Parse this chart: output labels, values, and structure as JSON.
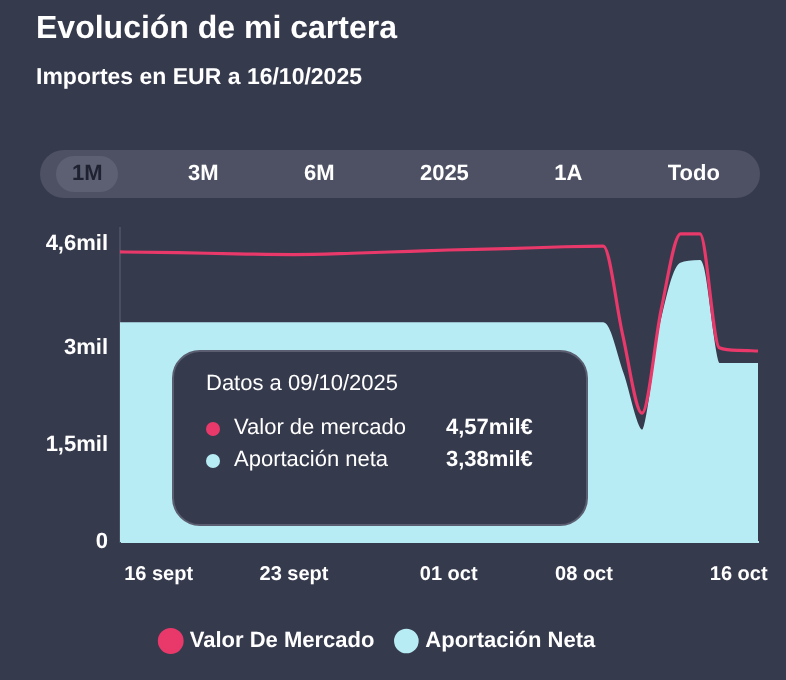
{
  "chart_data": {
    "type": "area",
    "title": "Evolución de mi cartera",
    "subtitle": "Importes en EUR a 16/10/2025",
    "series": [
      {
        "name": "Aportación Neta",
        "type": "area",
        "color": "#b8ecf5",
        "x": [
          "2025-09-14",
          "2025-09-20",
          "2025-09-26",
          "2025-10-02",
          "2025-10-09",
          "2025-10-10",
          "2025-10-11",
          "2025-10-12",
          "2025-10-13",
          "2025-10-14",
          "2025-10-15",
          "2025-10-16",
          "2025-10-17"
        ],
        "values": [
          3.38,
          3.38,
          3.38,
          3.38,
          3.38,
          2.6,
          1.72,
          3.4,
          4.3,
          4.34,
          2.75,
          2.75,
          2.75
        ]
      },
      {
        "name": "Valor De Mercado",
        "type": "line",
        "color": "#e8396a",
        "x": [
          "2025-09-14",
          "2025-09-17",
          "2025-09-20",
          "2025-09-23",
          "2025-09-26",
          "2025-09-29",
          "2025-10-01",
          "2025-10-04",
          "2025-10-07",
          "2025-10-09",
          "2025-10-10",
          "2025-10-11",
          "2025-10-12",
          "2025-10-13",
          "2025-10-14",
          "2025-10-15",
          "2025-10-16",
          "2025-10-17"
        ],
        "values": [
          4.48,
          4.47,
          4.45,
          4.44,
          4.46,
          4.49,
          4.51,
          4.53,
          4.56,
          4.57,
          3.2,
          1.99,
          3.6,
          4.76,
          4.76,
          3.0,
          2.96,
          2.95
        ]
      }
    ],
    "xlim": [
      "2025-09-14",
      "2025-10-17"
    ],
    "xticks": [
      {
        "value": "2025-09-16",
        "label": "16 sept"
      },
      {
        "value": "2025-09-23",
        "label": "23 sept"
      },
      {
        "value": "2025-10-01",
        "label": "01 oct"
      },
      {
        "value": "2025-10-08",
        "label": "08 oct"
      },
      {
        "value": "2025-10-16",
        "label": "16 oct"
      }
    ],
    "ylim": [
      0,
      4.85
    ],
    "yticks": [
      0,
      {
        "value": 1.5,
        "label": "1,5mil"
      },
      {
        "value": 3,
        "label": "3mil"
      },
      {
        "value": 4.6,
        "label": "4,6mil"
      }
    ],
    "grid": false,
    "legend": "bottom",
    "marker": "none",
    "line_style": "solid",
    "annotations": [
      "1M",
      "3M",
      "6M",
      "2025",
      "1A",
      "Todo",
      "Datos a 09/10/2025",
      "Valor de mercado 4,57mil€",
      "Aportación neta 3,38mil€"
    ]
  }
}
